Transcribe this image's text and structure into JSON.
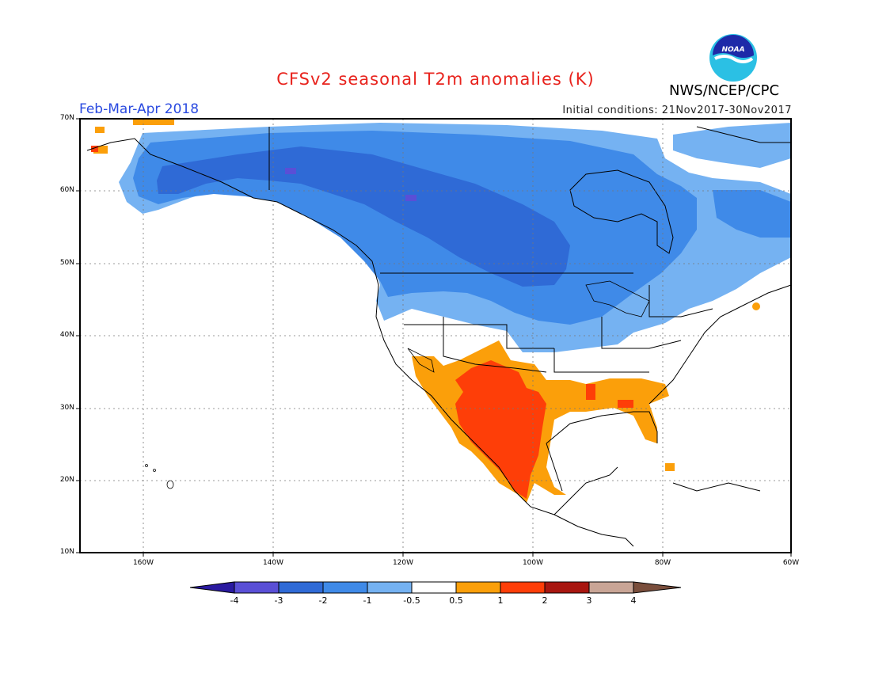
{
  "header": {
    "title": "CFSv2 seasonal T2m anomalies (K)",
    "season": "Feb-Mar-Apr 2018",
    "initial_conditions": "Initial conditions: 21Nov2017-30Nov2017",
    "agency": "NWS/NCEP/CPC",
    "logo_text": "NOAA"
  },
  "map": {
    "lat_labels": [
      "70N",
      "60N",
      "50N",
      "40N",
      "30N",
      "20N",
      "10N"
    ],
    "lon_labels": [
      "160W",
      "140W",
      "120W",
      "100W",
      "80W",
      "60W"
    ]
  },
  "colorbar": {
    "labels": [
      "-4",
      "-3",
      "-2",
      "-1",
      "-0.5",
      "0.5",
      "1",
      "2",
      "3",
      "4"
    ],
    "colors": [
      "#2a1aa0",
      "#5a4fd6",
      "#2f6ad6",
      "#3f8ae8",
      "#75b2f2",
      "#ffffff",
      "#fb9f0a",
      "#fe3e08",
      "#a81610",
      "#c9a596",
      "#7a4e3c"
    ]
  },
  "colors": {
    "title": "#e8231d",
    "season": "#2a4ae0",
    "cold_dark": "#2f6ad6",
    "cold": "#3f8ae8",
    "cool": "#75b2f2",
    "warm": "#fb9f0a",
    "hot": "#fe3e08"
  }
}
